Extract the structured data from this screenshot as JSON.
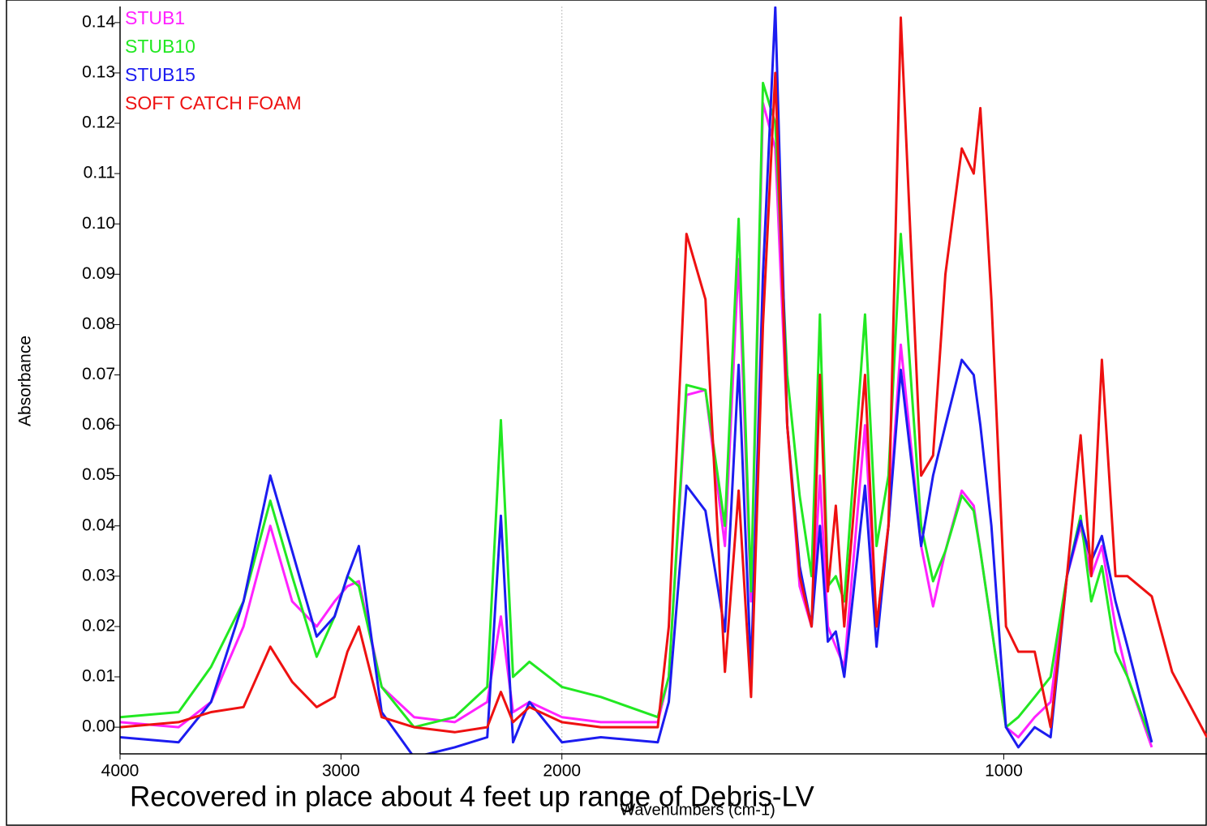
{
  "chart_data": {
    "type": "line",
    "annotation": "Recovered in place about 4 feet up range of Debris-LV",
    "x_label": "Wavenumbers (cm-1)",
    "y_label": "Absorbance",
    "x": [
      4000,
      3735,
      3588,
      3441,
      3320,
      3221,
      3110,
      3029,
      2971,
      2919,
      2816,
      2669,
      2485,
      2338,
      2276,
      2221,
      2147,
      2000,
      1912,
      1783,
      1758,
      1718,
      1675,
      1631,
      1600,
      1572,
      1545,
      1517,
      1490,
      1462,
      1435,
      1416,
      1398,
      1380,
      1361,
      1314,
      1288,
      1261,
      1233,
      1187,
      1160,
      1132,
      1095,
      1068,
      1053,
      1028,
      995,
      967,
      930,
      894,
      857,
      826,
      802,
      778,
      747,
      720,
      665,
      619,
      540
    ],
    "series": [
      {
        "name": "STUB1",
        "color": "#ff22ff",
        "values": [
          0.001,
          0.0,
          0.005,
          0.02,
          0.04,
          0.025,
          0.02,
          0.025,
          0.028,
          0.029,
          0.008,
          0.002,
          0.001,
          0.005,
          0.022,
          0.003,
          0.005,
          0.002,
          0.001,
          0.001,
          0.01,
          0.066,
          0.067,
          0.036,
          0.093,
          0.025,
          0.124,
          0.115,
          0.06,
          0.028,
          0.02,
          0.05,
          0.02,
          0.016,
          0.012,
          0.06,
          0.02,
          0.04,
          0.076,
          0.036,
          0.024,
          0.035,
          0.047,
          0.044,
          0.035,
          0.02,
          0.0,
          -0.002,
          0.002,
          0.005,
          0.03,
          0.04,
          0.03,
          0.036,
          0.02,
          0.01,
          -0.004,
          null,
          null
        ]
      },
      {
        "name": "STUB10",
        "color": "#22e822",
        "values": [
          0.002,
          0.003,
          0.012,
          0.025,
          0.045,
          0.03,
          0.014,
          0.022,
          0.03,
          0.028,
          0.008,
          0.0,
          0.002,
          0.008,
          0.061,
          0.01,
          0.013,
          0.008,
          0.006,
          0.002,
          0.01,
          0.068,
          0.067,
          0.04,
          0.101,
          0.027,
          0.128,
          0.12,
          0.07,
          0.046,
          0.03,
          0.082,
          0.028,
          0.03,
          0.025,
          0.082,
          0.036,
          0.05,
          0.098,
          0.04,
          0.029,
          0.035,
          0.046,
          0.043,
          0.035,
          0.02,
          0.0,
          0.002,
          0.006,
          0.01,
          0.03,
          0.042,
          0.025,
          0.032,
          0.015,
          0.01,
          -0.003,
          null,
          null
        ]
      },
      {
        "name": "STUB15",
        "color": "#1c1cf0",
        "values": [
          -0.002,
          -0.003,
          0.005,
          0.025,
          0.05,
          0.035,
          0.018,
          0.022,
          0.03,
          0.036,
          0.003,
          -0.006,
          -0.004,
          -0.002,
          0.042,
          -0.003,
          0.005,
          -0.003,
          -0.002,
          -0.003,
          0.005,
          0.048,
          0.043,
          0.019,
          0.072,
          0.011,
          0.09,
          0.143,
          0.06,
          0.032,
          0.02,
          0.04,
          0.017,
          0.019,
          0.01,
          0.048,
          0.016,
          0.04,
          0.071,
          0.036,
          0.05,
          0.06,
          0.073,
          0.07,
          0.06,
          0.04,
          0.0,
          -0.004,
          0.0,
          -0.002,
          0.03,
          0.041,
          0.033,
          0.038,
          0.025,
          0.016,
          -0.003,
          null,
          null
        ]
      },
      {
        "name": "SOFT CATCH FOAM",
        "color": "#ee1111",
        "values": [
          0.0,
          0.001,
          0.003,
          0.004,
          0.016,
          0.009,
          0.004,
          0.006,
          0.015,
          0.02,
          0.002,
          0.0,
          -0.001,
          0.0,
          0.007,
          0.001,
          0.004,
          0.001,
          0.0,
          0.0,
          0.02,
          0.098,
          0.085,
          0.011,
          0.047,
          0.006,
          0.08,
          0.13,
          0.06,
          0.03,
          0.02,
          0.07,
          0.027,
          0.044,
          0.02,
          0.07,
          0.02,
          0.04,
          0.141,
          0.05,
          0.054,
          0.09,
          0.115,
          0.11,
          0.123,
          0.085,
          0.02,
          0.015,
          0.015,
          0.0,
          0.03,
          0.058,
          0.03,
          0.073,
          0.03,
          0.03,
          0.026,
          0.011,
          -0.002
        ]
      }
    ],
    "xlim": [
      4000,
      540
    ],
    "xticks": [
      4000,
      3000,
      2000,
      1000
    ],
    "ylim": [
      -0.0053,
      0.1432
    ],
    "yticks": [
      {
        "value": 0,
        "label": "0.00"
      },
      0.01,
      0.02,
      0.03,
      0.04,
      0.05,
      0.06,
      0.07,
      0.08,
      0.09,
      {
        "value": 0.1,
        "label": "0.10"
      },
      0.11,
      0.12,
      0.13,
      0.14
    ],
    "legend": "top-left"
  }
}
